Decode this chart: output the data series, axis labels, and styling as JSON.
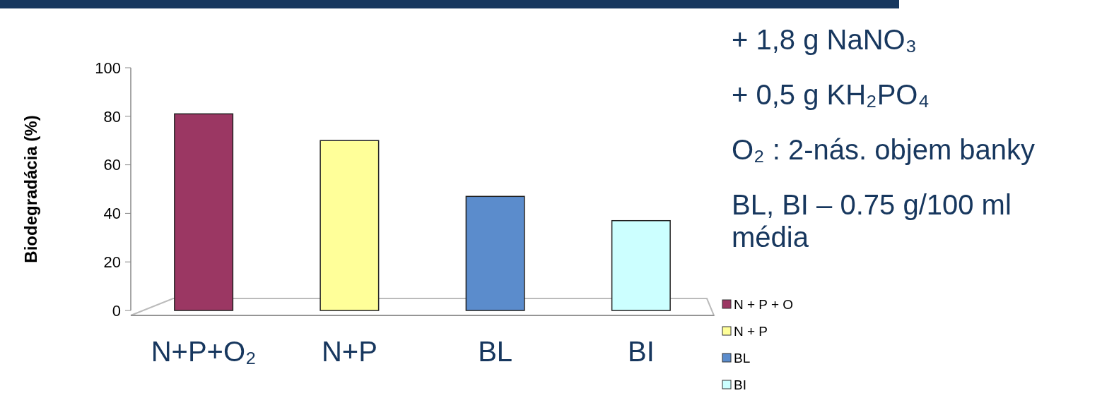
{
  "chart_data": {
    "type": "bar",
    "ylabel": "Biodegradácia (%)",
    "categories": [
      "N+P+O₂",
      "N+P",
      "BL",
      "BI"
    ],
    "series": [
      {
        "name": "N + P + O",
        "color": "#9b3763",
        "values": [
          81,
          null,
          null,
          null
        ]
      },
      {
        "name": "N + P",
        "color": "#ffff99",
        "values": [
          null,
          70,
          null,
          null
        ]
      },
      {
        "name": "BL",
        "color": "#5b8ccc",
        "values": [
          null,
          null,
          47,
          null
        ]
      },
      {
        "name": "BI",
        "color": "#ccffff",
        "values": [
          null,
          null,
          null,
          37
        ]
      }
    ],
    "ylim": [
      0,
      100
    ],
    "yticks": [
      0,
      20,
      40,
      60,
      80,
      100
    ],
    "grid": false,
    "legend": "right",
    "annotations": [
      "+ 1,8 g NaNO₃",
      "+ 0,5 g KH₂PO₄",
      "O₂ : 2-nás. objem banky",
      "BL, BI – 0.75 g/100 ml média"
    ]
  }
}
